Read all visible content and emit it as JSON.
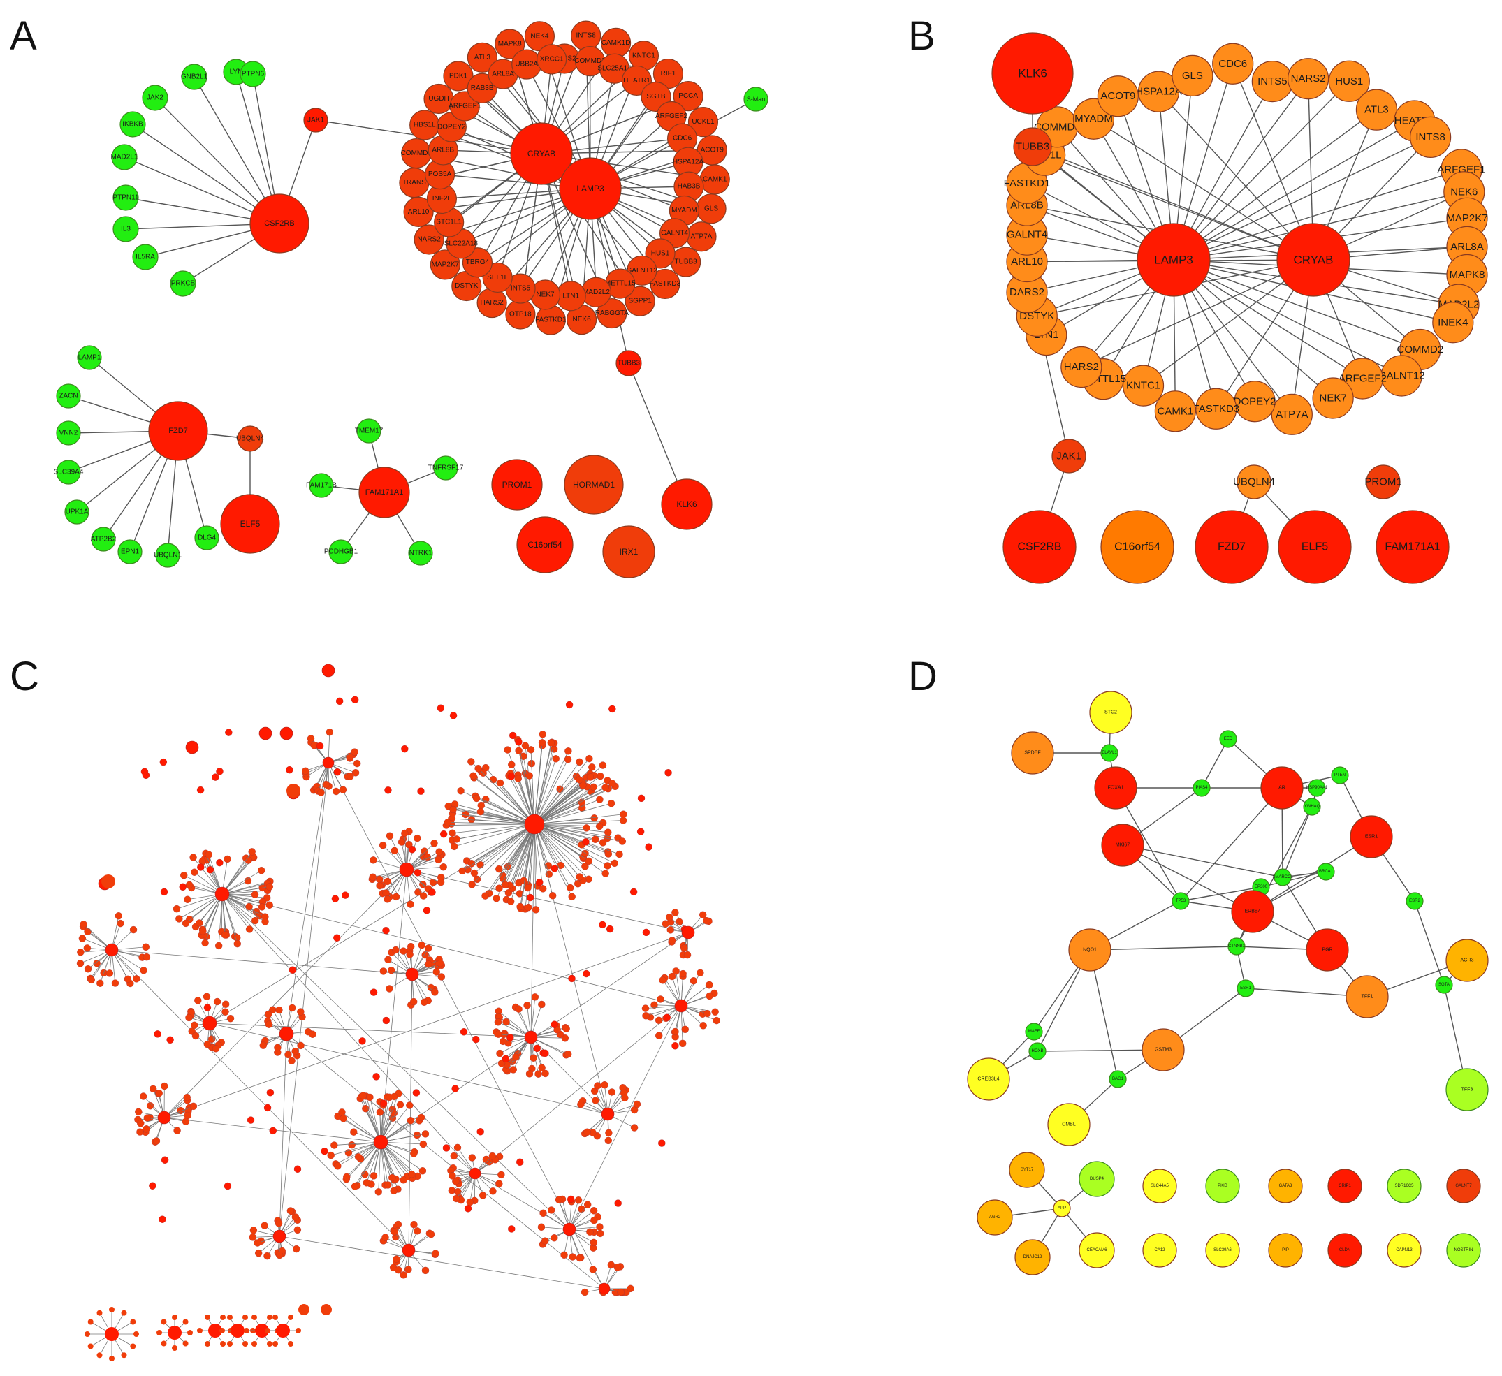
{
  "panels": {
    "A": {
      "letter": "A"
    },
    "B": {
      "letter": "B"
    },
    "C": {
      "letter": "C"
    },
    "D": {
      "letter": "D"
    }
  },
  "colors": {
    "red": "#ff1a00",
    "orange_red": "#f03d0a",
    "orange": "#ff7a00",
    "light_orange": "#ff8c1a",
    "green": "#22ee11",
    "yellow": "#ffff22",
    "yellow_green": "#aaff22",
    "amber": "#ffb300",
    "edge": "#555555"
  },
  "panelA": {
    "hubs": [
      {
        "label": "CSF2RB",
        "color": "red",
        "size": "large"
      },
      {
        "label": "CRYAB",
        "color": "red",
        "size": "large"
      },
      {
        "label": "LAMP3",
        "color": "red",
        "size": "large"
      },
      {
        "label": "FZD7",
        "color": "red",
        "size": "large"
      },
      {
        "label": "ELF5",
        "color": "red",
        "size": "large"
      },
      {
        "label": "FAM171A1",
        "color": "red",
        "size": "large"
      },
      {
        "label": "PROM1",
        "color": "red",
        "size": "large"
      },
      {
        "label": "HORMAD1",
        "color": "orange_red",
        "size": "large"
      },
      {
        "label": "C16orf54",
        "color": "red",
        "size": "large"
      },
      {
        "label": "IRX1",
        "color": "orange_red",
        "size": "large"
      },
      {
        "label": "KLK6",
        "color": "red",
        "size": "large"
      },
      {
        "label": "JAK1",
        "color": "red",
        "size": "small"
      },
      {
        "label": "TUBB3",
        "color": "red",
        "size": "small"
      },
      {
        "label": "UBQLN4",
        "color": "orange_red",
        "size": "small"
      }
    ],
    "csf2rb_neighbors": [
      "LYN",
      "PTPN6",
      "GNB2L1",
      "JAK2",
      "IKBKB",
      "MAD2L1",
      "PTPN11",
      "IL3",
      "IL5RA",
      "PRKCB"
    ],
    "fzd7_neighbors": [
      "LAMP1",
      "ZACN",
      "VNN2",
      "SLC39A4",
      "UPK1A",
      "ATP2B2",
      "EPN1",
      "UBQLN1",
      "DLG4"
    ],
    "fam171a1_neighbors": [
      "TMEM17",
      "TNFRSF17",
      "FAM171B",
      "PCDHGB1",
      "NTRK1"
    ],
    "ring_labels": [
      "DARS2",
      "INTS8",
      "COMMD2",
      "CAMK1D",
      "SLC25A14",
      "KNTC1",
      "HEATR1",
      "RIF1",
      "SGTB",
      "PCCA",
      "ARFGEF2",
      "UCKL1",
      "CDC6",
      "ACOT9",
      "HSPA12A",
      "CAMK1",
      "HAB3B",
      "GLS",
      "MYADM",
      "ATP7A",
      "GALNT4",
      "TUBB3",
      "HUS1",
      "FASTKD3",
      "GALNT12",
      "SGPP1",
      "METTL15",
      "RABGGTA",
      "MAD2L2",
      "NEK6",
      "LTN1",
      "FASTKD1",
      "NEK7",
      "OTP18",
      "INTS5",
      "HARS2",
      "SEL1L",
      "DSTYK",
      "TBRG4",
      "MAP2K7",
      "SLC22A18",
      "NARS2",
      "STC1L1",
      "ARL10",
      "INF2L",
      "TRANS",
      "POS5A",
      "COMMD3",
      "ARL8B",
      "HBS1L",
      "DOPEY2",
      "UGDH",
      "ARFGEF1",
      "PDK1",
      "RAB3B",
      "ATL3",
      "ARL8A",
      "MAPK8",
      "UBB2A",
      "NEK4",
      "XRCC1"
    ],
    "far_label": "S-Man"
  },
  "panelB": {
    "hubs": [
      {
        "label": "LAMP3",
        "color": "red"
      },
      {
        "label": "CRYAB",
        "color": "red"
      },
      {
        "label": "KLK6",
        "color": "red"
      }
    ],
    "ring_labels": [
      "HSPA12A",
      "GLS",
      "CDC6",
      "INTS5",
      "NARS2",
      "HUS1",
      "ATL3",
      "HEATR1",
      "INTS8",
      "ARFGEF1",
      "NEK6",
      "MAP2K7",
      "ARL8A",
      "MAPK8",
      "MAD2L2",
      "INEK4",
      "COMMD2",
      "GALNT12",
      "ARFGEF2",
      "NEK7",
      "ATP7A",
      "DOPEY2",
      "FASTKD3",
      "CAMK1",
      "KNTC1",
      "METTL15",
      "HARS2",
      "LTN1",
      "DSTYK",
      "DARS2",
      "ARL10",
      "GALNT4",
      "ARL8B",
      "FASTKD1",
      "HBS1L",
      "COMMD3",
      "MYADM",
      "ACOT9"
    ],
    "other_labels": {
      "tubb3": "TUBB3",
      "jak1": "JAK1",
      "ubqln4": "UBQLN4",
      "prom1": "PROM1"
    },
    "bottom_row": [
      {
        "label": "CSF2RB",
        "color": "red"
      },
      {
        "label": "C16orf54",
        "color": "orange"
      },
      {
        "label": "FZD7",
        "color": "red"
      },
      {
        "label": "ELF5",
        "color": "red"
      },
      {
        "label": "FAM171A1",
        "color": "red"
      }
    ]
  },
  "panelD": {
    "nodes_network": [
      {
        "label": "STC2",
        "color": "yellow"
      },
      {
        "label": "SPDEF",
        "color": "light_orange"
      },
      {
        "label": "ELAVL1",
        "color": "green"
      },
      {
        "label": "FOXA1",
        "color": "red"
      },
      {
        "label": "EED",
        "color": "green"
      },
      {
        "label": "PIAS4",
        "color": "green"
      },
      {
        "label": "AR",
        "color": "red"
      },
      {
        "label": "PTEN",
        "color": "green"
      },
      {
        "label": "HSP90AA1",
        "color": "green"
      },
      {
        "label": "YWHAQ",
        "color": "green"
      },
      {
        "label": "MKI67",
        "color": "red"
      },
      {
        "label": "ESR1",
        "color": "red"
      },
      {
        "label": "SMARCC1",
        "color": "green"
      },
      {
        "label": "BRCA1",
        "color": "green"
      },
      {
        "label": "EP300",
        "color": "green"
      },
      {
        "label": "TP53",
        "color": "green"
      },
      {
        "label": "ERBB4",
        "color": "red"
      },
      {
        "label": "ESR2",
        "color": "green"
      },
      {
        "label": "NQO1",
        "color": "light_orange"
      },
      {
        "label": "CTNNB1",
        "color": "green"
      },
      {
        "label": "PGR",
        "color": "red"
      },
      {
        "label": "AGR3",
        "color": "amber"
      },
      {
        "label": "ESR1",
        "color": "green"
      },
      {
        "label": "TFF1",
        "color": "light_orange"
      },
      {
        "label": "SGTA",
        "color": "green"
      },
      {
        "label": "MAFF",
        "color": "green"
      },
      {
        "label": "HOXB",
        "color": "green"
      },
      {
        "label": "GSTM3",
        "color": "light_orange"
      },
      {
        "label": "CREB3L4",
        "color": "yellow"
      },
      {
        "label": "BAG1",
        "color": "green"
      },
      {
        "label": "TFF3",
        "color": "yellow_green"
      },
      {
        "label": "CMBL",
        "color": "yellow"
      }
    ],
    "small_cluster": [
      {
        "label": "SYT17",
        "color": "amber"
      },
      {
        "label": "DUSP4",
        "color": "yellow_green"
      },
      {
        "label": "APP",
        "color": "yellow"
      },
      {
        "label": "AGR2",
        "color": "amber"
      },
      {
        "label": "DNAJC12",
        "color": "amber"
      },
      {
        "label": "CEACAM6",
        "color": "yellow"
      }
    ],
    "grid_row1": [
      {
        "label": "SLC44A5",
        "color": "yellow"
      },
      {
        "label": "PKIB",
        "color": "yellow_green"
      },
      {
        "label": "GATA3",
        "color": "amber"
      },
      {
        "label": "CRIP1",
        "color": "red"
      },
      {
        "label": "SDR16C5",
        "color": "yellow_green"
      },
      {
        "label": "GALNT7",
        "color": "orange_red"
      }
    ],
    "grid_row2": [
      {
        "label": "CA12",
        "color": "yellow"
      },
      {
        "label": "SLC39A6",
        "color": "yellow"
      },
      {
        "label": "PIP",
        "color": "amber"
      },
      {
        "label": "CLDN",
        "color": "red"
      },
      {
        "label": "CAPN13",
        "color": "yellow"
      },
      {
        "label": "NOSTRIN",
        "color": "yellow_green"
      }
    ]
  }
}
